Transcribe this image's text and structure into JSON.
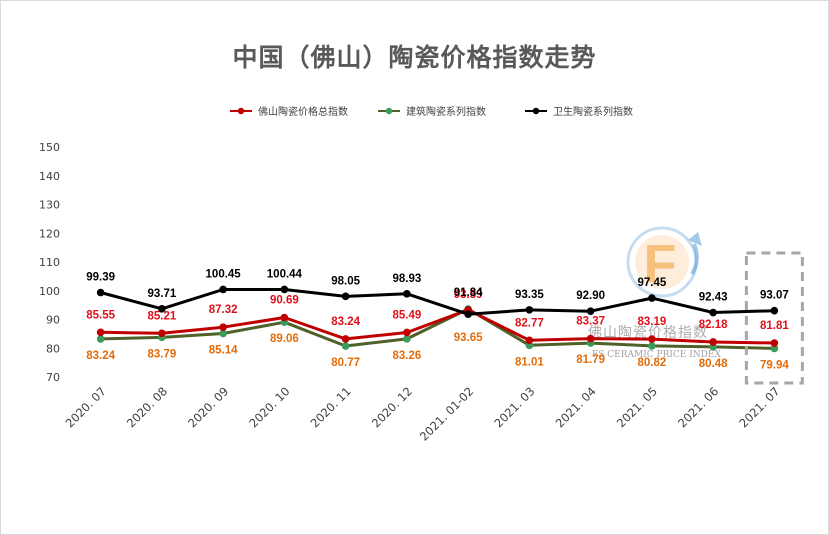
{
  "chart_data": {
    "type": "line",
    "title": "中国（佛山）陶瓷价格指数走势",
    "categories": [
      "2020. 07",
      "2020. 08",
      "2020. 09",
      "2020. 10",
      "2020. 11",
      "2020. 12",
      "2021. 01-02",
      "2021. 03",
      "2021. 04",
      "2021. 05",
      "2021. 06",
      "2021. 07"
    ],
    "yticks": [
      "150",
      "140",
      "130",
      "120",
      "110",
      "100",
      "90",
      "80",
      "70"
    ],
    "ylim": [
      70,
      150
    ],
    "grid": false,
    "legend_position": "top",
    "series": [
      {
        "name": "佛山陶瓷价格总指数",
        "color": "#c00000",
        "label_color": "#e0101a",
        "values": [
          85.55,
          85.21,
          87.32,
          90.69,
          83.24,
          85.49,
          93.39,
          82.77,
          83.37,
          83.19,
          82.18,
          81.81
        ],
        "labels": [
          "85.55",
          "85.21",
          "87.32",
          "90.69",
          "83.24",
          "85.49",
          "93.39",
          "82.77",
          "83.37",
          "83.19",
          "82.18",
          "81.81"
        ]
      },
      {
        "name": "建筑陶瓷系列指数",
        "color": "#4e6128",
        "marker_color": "#3a9b5a",
        "label_color": "#e46c0a",
        "values": [
          83.24,
          83.79,
          85.14,
          89.06,
          80.77,
          83.26,
          93.65,
          81.01,
          81.79,
          80.82,
          80.48,
          79.94
        ],
        "labels": [
          "83.24",
          "83.79",
          "85.14",
          "89.06",
          "80.77",
          "83.26",
          "93.65",
          "81.01",
          "81.79",
          "80.82",
          "80.48",
          "79.94"
        ]
      },
      {
        "name": "卫生陶瓷系列指数",
        "color": "#000000",
        "label_color": "#000000",
        "values": [
          99.39,
          93.71,
          100.45,
          100.44,
          98.05,
          98.93,
          91.84,
          93.35,
          92.9,
          97.45,
          92.43,
          93.07
        ],
        "labels": [
          "99.39",
          "93.71",
          "100.45",
          "100.44",
          "98.05",
          "98.93",
          "91.84",
          "93.35",
          "92.90",
          "97.45",
          "92.43",
          "93.07"
        ]
      }
    ],
    "highlight_category": "2021. 07",
    "highlight_color": "#a6a6a6"
  },
  "watermark": {
    "logo_letter": "F",
    "text": "佛山陶瓷价格指数",
    "subtext": "FS CERAMIC PRICE INDEX",
    "colors": {
      "orange": "#f39c32",
      "blue": "#5b9bd5"
    }
  }
}
